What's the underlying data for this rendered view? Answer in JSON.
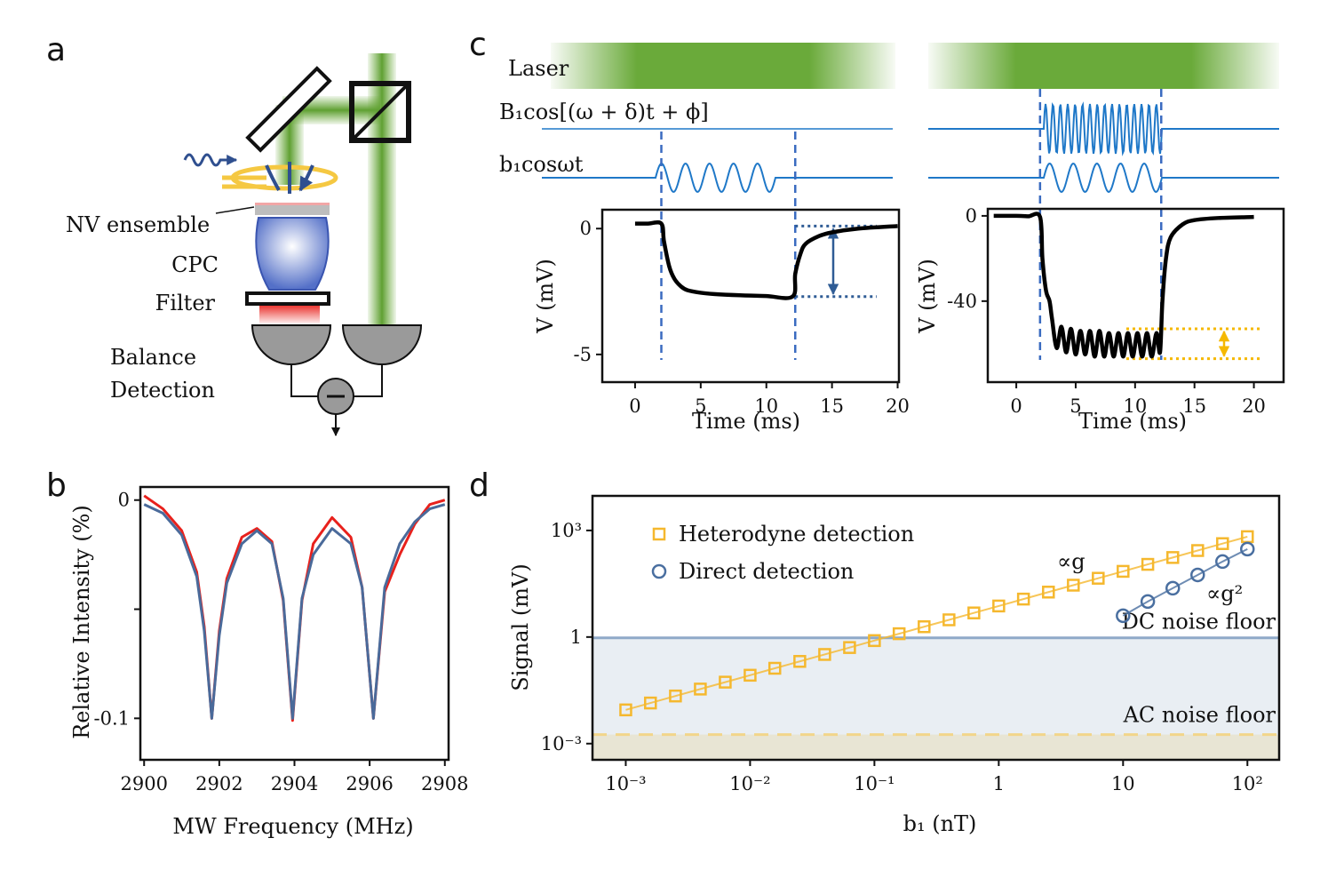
{
  "panel_labels": [
    "a",
    "b",
    "c",
    "d"
  ],
  "diagram": {
    "labels": [
      "NV ensemble",
      "CPC",
      "Filter",
      "Balance",
      "Detection"
    ]
  },
  "waveforms": {
    "labels": [
      "Laser",
      "B₁cos[(ω + δ)t + ϕ]",
      "b₁cosωt"
    ]
  },
  "chart_data": [
    {
      "type": "line",
      "xlabel": "MW Frequency (MHz)",
      "ylabel": "Relative Intensity (%)",
      "xlim": [
        2899.9,
        2908.1
      ],
      "xticks": [
        2900,
        2902,
        2904,
        2906,
        2908
      ],
      "ylim": [
        -0.119,
        0.006
      ],
      "yticks": [
        0,
        -0.1
      ],
      "minor_yticks": [
        -0.05
      ],
      "x": [
        2900,
        2900.5,
        2901,
        2901.4,
        2901.6,
        2901.8,
        2902,
        2902.2,
        2902.6,
        2903,
        2903.4,
        2903.7,
        2903.95,
        2904.2,
        2904.5,
        2905,
        2905.5,
        2905.8,
        2906.1,
        2906.4,
        2906.8,
        2907.2,
        2907.6,
        2908
      ],
      "series": [
        {
          "color": "#e8211c",
          "values": [
            0.002,
            -0.004,
            -0.014,
            -0.033,
            -0.058,
            -0.1,
            -0.06,
            -0.036,
            -0.017,
            -0.013,
            -0.019,
            -0.046,
            -0.101,
            -0.046,
            -0.02,
            -0.008,
            -0.017,
            -0.04,
            -0.1,
            -0.042,
            -0.025,
            -0.011,
            -0.002,
            0
          ]
        },
        {
          "color": "#4a6a9a",
          "values": [
            -0.002,
            -0.006,
            -0.016,
            -0.035,
            -0.06,
            -0.1,
            -0.062,
            -0.038,
            -0.02,
            -0.014,
            -0.02,
            -0.045,
            -0.1,
            -0.045,
            -0.025,
            -0.013,
            -0.02,
            -0.04,
            -0.1,
            -0.04,
            -0.02,
            -0.01,
            -0.004,
            -0.002
          ]
        }
      ]
    },
    {
      "type": "line",
      "xlabel": "Time (ms)",
      "ylabel": "V (mV)",
      "xlim": [
        -2.5,
        20.1
      ],
      "xticks": [
        0,
        5,
        10,
        15,
        20
      ],
      "ylim": [
        -6.1,
        0.75
      ],
      "yticks": [
        0,
        -5
      ],
      "x": [
        0,
        1,
        2,
        2.2,
        2.6,
        3,
        3.5,
        4,
        5,
        6,
        8,
        10,
        12,
        12.2,
        12.6,
        13,
        14,
        15,
        17,
        20
      ],
      "series": [
        {
          "color": "#000000",
          "values": [
            0.2,
            0.2,
            0.2,
            -0.5,
            -1.5,
            -2.0,
            -2.3,
            -2.45,
            -2.55,
            -2.6,
            -2.65,
            -2.68,
            -2.7,
            -1.8,
            -1.0,
            -0.6,
            -0.3,
            -0.15,
            0,
            0.1
          ]
        }
      ],
      "vlines": [
        2,
        12.2
      ],
      "vline_color": "#3a6bc0",
      "levels": [
        0.1,
        -2.7
      ],
      "level_color": "#2f5c95"
    },
    {
      "type": "line",
      "xlabel": "Time (ms)",
      "ylabel": "V (mV)",
      "xlim": [
        -2.4,
        22.5
      ],
      "xticks": [
        0,
        5,
        10,
        15,
        20
      ],
      "ylim": [
        -78,
        3.3
      ],
      "yticks": [
        0,
        -40
      ],
      "x": [
        -1.9,
        0,
        1,
        2,
        2.2,
        2.5,
        2.8,
        3.0,
        3.4,
        3.8,
        4.2,
        4.6,
        5.0,
        5.4,
        5.8,
        6.2,
        6.6,
        7.0,
        7.4,
        7.8,
        8.2,
        8.6,
        9.0,
        9.4,
        9.8,
        10.2,
        10.6,
        11.0,
        11.4,
        11.8,
        12.1,
        12.3,
        12.6,
        13,
        14,
        15,
        17,
        20
      ],
      "series": [
        {
          "color": "#000000",
          "values": [
            0,
            0,
            -0.2,
            -0.5,
            -20,
            -35,
            -40,
            -48,
            -62,
            -52,
            -64,
            -53,
            -65,
            -54,
            -65,
            -54,
            -66,
            -54,
            -66,
            -55,
            -66,
            -55,
            -66,
            -55,
            -66,
            -55,
            -66,
            -55,
            -66,
            -55,
            -64,
            -40,
            -20,
            -10,
            -4,
            -2,
            -1,
            -0.5
          ]
        }
      ],
      "vlines": [
        2,
        12.2
      ],
      "vline_color": "#3a6bc0",
      "levels": [
        -53,
        -67
      ],
      "level_color": "#f5b800"
    },
    {
      "type": "scatter",
      "log": true,
      "xlabel": "b₁ (nT)",
      "ylabel": "Signal (mV)",
      "xlim": [
        0.00054,
        180
      ],
      "xticks": [
        {
          "value": 0.001,
          "label": "10⁻³"
        },
        {
          "value": 0.01,
          "label": "10⁻²"
        },
        {
          "value": 0.1,
          "label": "10⁻¹"
        },
        1,
        10,
        {
          "value": 100,
          "label": "10²"
        }
      ],
      "ylim": [
        0.00035,
        9400
      ],
      "yticks": [
        {
          "value": 0.001,
          "label": "10⁻³"
        },
        1,
        {
          "value": 1000,
          "label": "10³"
        }
      ],
      "legend": "upper left",
      "series": [
        {
          "name": "Heterodyne detection",
          "color": "#f5b82e",
          "marker": "square",
          "x": [
            0.001,
            0.00158,
            0.00251,
            0.00398,
            0.00631,
            0.01,
            0.0158,
            0.0251,
            0.0398,
            0.0631,
            0.1,
            0.158,
            0.251,
            0.398,
            0.631,
            1,
            1.58,
            2.51,
            3.98,
            6.31,
            10,
            15.8,
            25.1,
            39.8,
            63.1,
            100
          ],
          "values": [
            0.0089,
            0.0139,
            0.0219,
            0.0343,
            0.0537,
            0.0841,
            0.132,
            0.206,
            0.323,
            0.506,
            0.794,
            1.24,
            1.95,
            3.05,
            4.77,
            7.48,
            11.7,
            18.4,
            28.8,
            45.1,
            70.6,
            111,
            173,
            272,
            426,
            668
          ]
        },
        {
          "name": "Direct detection",
          "color": "#4a6fa0",
          "marker": "circle",
          "x": [
            10,
            15.8,
            25.1,
            39.8,
            63.1,
            100
          ],
          "values": [
            3.98,
            10,
            23.7,
            56,
            133,
            299
          ]
        }
      ],
      "hlines": [
        {
          "value": 0.95,
          "label": "DC noise floor",
          "color": "#8fa9c8",
          "style": "solid",
          "fill": "#e9eef3"
        },
        {
          "value": 0.0018,
          "label": "AC noise floor",
          "color": "#f2d58a",
          "style": "dashed",
          "fill": "#e8e5d4"
        }
      ],
      "annotations": [
        "∝g",
        "∝g²"
      ]
    }
  ]
}
